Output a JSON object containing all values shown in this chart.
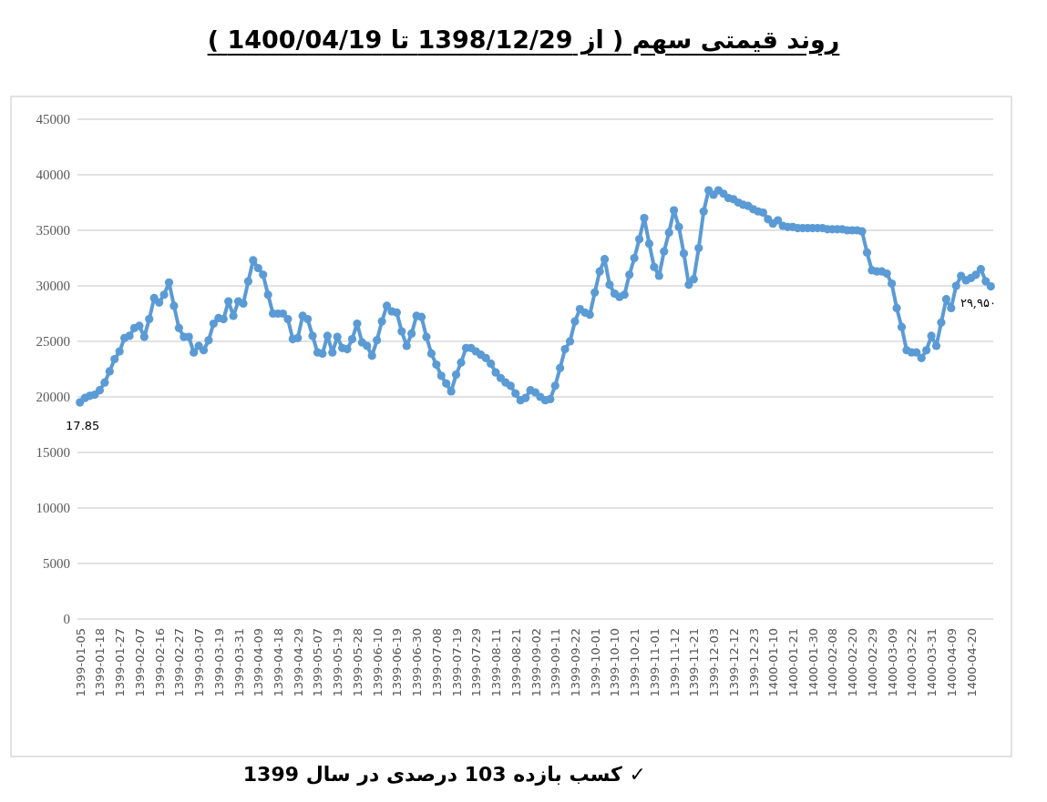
{
  "chart_data": {
    "type": "line",
    "title": "روند قیمتی سهم ( از 1398/12/29 تا 1400/04/19 )",
    "categories": [
      "1399-01-05",
      null,
      null,
      null,
      "1399-01-18",
      null,
      null,
      null,
      "1399-01-27",
      null,
      null,
      null,
      "1399-02-07",
      null,
      null,
      null,
      "1399-02-16",
      null,
      null,
      null,
      "1399-02-27",
      null,
      null,
      null,
      "1399-03-07",
      null,
      null,
      null,
      "1399-03-19",
      null,
      null,
      null,
      "1399-03-31",
      null,
      null,
      null,
      "1399-04-09",
      null,
      null,
      null,
      "1399-04-18",
      null,
      null,
      null,
      "1399-04-29",
      null,
      null,
      null,
      "1399-05-07",
      null,
      null,
      null,
      "1399-05-19",
      null,
      null,
      null,
      "1399-05-28",
      null,
      null,
      null,
      "1399-06-10",
      null,
      null,
      null,
      "1399-06-19",
      null,
      null,
      null,
      "1399-06-30",
      null,
      null,
      null,
      "1399-07-08",
      null,
      null,
      null,
      "1399-07-19",
      null,
      null,
      null,
      "1399-07-29",
      null,
      null,
      null,
      "1399-08-11",
      null,
      null,
      null,
      "1399-08-21",
      null,
      null,
      null,
      "1399-09-02",
      null,
      null,
      null,
      "1399-09-11",
      null,
      null,
      null,
      "1399-09-22",
      null,
      null,
      null,
      "1399-10-01",
      null,
      null,
      null,
      "1399-10-10",
      null,
      null,
      null,
      "1399-10-21",
      null,
      null,
      null,
      "1399-11-01",
      null,
      null,
      null,
      "1399-11-12",
      null,
      null,
      null,
      "1399-11-21",
      null,
      null,
      null,
      "1399-12-03",
      null,
      null,
      null,
      "1399-12-12",
      null,
      null,
      null,
      "1399-12-23",
      null,
      null,
      null,
      "1400-01-10",
      null,
      null,
      null,
      "1400-01-21",
      null,
      null,
      null,
      "1400-01-30",
      null,
      null,
      null,
      "1400-02-08",
      null,
      null,
      null,
      "1400-02-20",
      null,
      null,
      null,
      "1400-02-29",
      null,
      null,
      null,
      "1400-03-09",
      null,
      null,
      null,
      "1400-03-22",
      null,
      null,
      null,
      "1400-03-31",
      null,
      null,
      null,
      "1400-04-09",
      null,
      null,
      null,
      "1400-04-20",
      null,
      null,
      null,
      null
    ],
    "series": [
      {
        "color": "#5b9bd5",
        "values": [
          19500,
          19900,
          20100,
          20200,
          20600,
          21300,
          22300,
          23400,
          24100,
          25300,
          25500,
          26200,
          26400,
          25400,
          27000,
          28900,
          28500,
          29200,
          30300,
          28200,
          26200,
          25400,
          25400,
          24000,
          24600,
          24200,
          25100,
          26600,
          27100,
          27000,
          28600,
          27300,
          28600,
          28400,
          30400,
          32300,
          31600,
          31000,
          29200,
          27500,
          27500,
          27500,
          27000,
          25200,
          25300,
          27300,
          27000,
          25500,
          24000,
          23900,
          25500,
          24000,
          25400,
          24400,
          24300,
          25200,
          26600,
          24900,
          24600,
          23700,
          25100,
          26800,
          28200,
          27700,
          27600,
          25900,
          24600,
          25700,
          27300,
          27200,
          25400,
          23900,
          22900,
          21900,
          21200,
          20500,
          22000,
          23100,
          24400,
          24400,
          24100,
          23800,
          23500,
          23000,
          22200,
          21700,
          21300,
          21000,
          20300,
          19700,
          19900,
          20600,
          20400,
          20000,
          19700,
          19800,
          21000,
          22600,
          24300,
          25000,
          26800,
          27900,
          27600,
          27400,
          29400,
          31300,
          32400,
          30100,
          29300,
          29000,
          29200,
          31000,
          32500,
          34200,
          36100,
          33800,
          31700,
          30900,
          33100,
          34800,
          36800,
          35300,
          32900,
          30100,
          30600,
          33400,
          36700,
          38600,
          38200,
          38600,
          38300,
          37900,
          37800,
          37500,
          37300,
          37200,
          36900,
          36700,
          36600,
          36000,
          35600,
          35900,
          35400,
          35300,
          35300,
          35200,
          35200,
          35200,
          35200,
          35200,
          35200,
          35100,
          35100,
          35100,
          35100,
          35000,
          35000,
          35000,
          34900,
          33000,
          31400,
          31300,
          31300,
          31100,
          30200,
          28000,
          26300,
          24200,
          24000,
          24000,
          23500,
          24200,
          25500,
          24600,
          26700,
          28800,
          28000,
          30000,
          30900,
          30500,
          30700,
          31000,
          31500,
          30400,
          29950
        ],
        "value_labels": [
          null,
          null,
          null,
          null,
          null,
          null,
          null,
          null,
          null,
          null,
          null,
          null,
          null,
          null,
          null,
          null,
          null,
          null,
          null,
          null,
          null,
          null,
          null,
          null,
          null,
          null,
          null,
          null,
          null,
          null,
          null,
          null,
          null,
          null,
          null,
          null,
          null,
          null,
          null,
          null,
          null,
          null,
          null,
          null,
          null,
          null,
          null,
          null,
          null,
          null,
          null,
          null,
          null,
          null,
          null,
          null,
          null,
          null,
          null,
          null,
          null,
          null,
          null,
          null,
          null,
          null,
          null,
          null,
          null,
          null,
          null,
          null,
          null,
          null,
          null,
          null,
          null,
          null,
          null,
          null,
          null,
          null,
          null,
          null,
          null,
          null,
          null,
          null,
          null,
          null,
          null,
          null,
          null,
          null,
          null,
          null,
          null,
          null,
          null,
          null,
          null,
          null,
          null,
          null,
          null,
          null,
          null,
          null,
          null,
          null,
          null,
          null,
          null,
          null,
          null,
          null,
          null,
          null,
          null,
          null,
          null,
          null,
          null,
          null,
          null,
          null,
          null,
          null,
          null,
          null,
          null,
          null,
          null,
          null,
          null,
          null,
          null,
          null,
          null,
          null,
          null,
          null,
          null,
          null,
          null,
          null,
          null,
          null,
          null,
          null,
          null,
          null,
          null,
          null,
          null,
          null,
          null,
          null,
          null,
          null,
          null,
          null,
          null,
          null,
          null,
          null,
          null,
          null,
          null,
          null,
          null,
          null,
          null,
          null,
          null,
          null,
          null,
          null,
          null,
          null,
          null,
          null,
          null,
          null,
          "۲۹,۹۵۰"
        ]
      }
    ],
    "ylim": [
      0,
      45000
    ],
    "yticks": [
      0,
      5000,
      10000,
      15000,
      20000,
      25000,
      30000,
      35000,
      40000,
      45000
    ],
    "grid": "y",
    "marker": "circle",
    "line_style": "solid",
    "annotations": [
      "17.85",
      "✓ کسب بازده 103 درصدی در سال 1399"
    ]
  }
}
